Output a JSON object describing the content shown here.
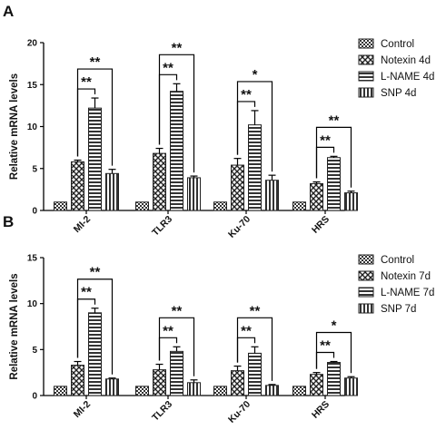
{
  "colors": {
    "bar_stroke": "#222222",
    "axis": "#000000",
    "background": "#ffffff"
  },
  "legend_patterns": [
    "checker-fine",
    "diag-cross",
    "horizontal-stripes",
    "vertical-stripes"
  ],
  "chart_data": [
    {
      "panel": "A",
      "type": "bar",
      "ylabel": "Relative mRNA levels",
      "ylim": [
        0,
        20
      ],
      "yticks": [
        0,
        5,
        10,
        15,
        20
      ],
      "categories": [
        "MI-2",
        "TLR3",
        "Ku-70",
        "HRS"
      ],
      "legend_position": "right",
      "series": [
        {
          "name": "Control",
          "pattern": "checker-fine",
          "values": [
            1,
            1,
            1,
            1
          ],
          "errors": [
            0,
            0,
            0,
            0
          ]
        },
        {
          "name": "Notexin 4d",
          "pattern": "diag-cross",
          "values": [
            5.8,
            6.8,
            5.4,
            3.2
          ],
          "errors": [
            0.2,
            0.6,
            0.8,
            0.2
          ]
        },
        {
          "name": "L-NAME 4d",
          "pattern": "horizontal-stripes",
          "values": [
            12.2,
            14.2,
            10.2,
            6.3
          ],
          "errors": [
            1.2,
            0.9,
            1.7,
            0.15
          ]
        },
        {
          "name": "SNP 4d",
          "pattern": "vertical-stripes",
          "values": [
            4.4,
            3.9,
            3.6,
            2.1
          ],
          "errors": [
            0.5,
            0.2,
            0.6,
            0.2
          ]
        }
      ],
      "significance": [
        {
          "category": "MI-2",
          "levels": [
            {
              "to_series": 2,
              "label": "**"
            },
            {
              "to_series": 3,
              "label": "**"
            }
          ]
        },
        {
          "category": "TLR3",
          "levels": [
            {
              "to_series": 2,
              "label": "**"
            },
            {
              "to_series": 3,
              "label": "**"
            }
          ]
        },
        {
          "category": "Ku-70",
          "levels": [
            {
              "to_series": 2,
              "label": "**"
            },
            {
              "to_series": 3,
              "label": "*"
            }
          ]
        },
        {
          "category": "HRS",
          "levels": [
            {
              "to_series": 2,
              "label": "**"
            },
            {
              "to_series": 3,
              "label": "**"
            }
          ]
        }
      ]
    },
    {
      "panel": "B",
      "type": "bar",
      "ylabel": "Relative mRNA levels",
      "ylim": [
        0,
        15
      ],
      "yticks": [
        0,
        5,
        10,
        15
      ],
      "categories": [
        "MI-2",
        "TLR3",
        "Ku-70",
        "HRS"
      ],
      "legend_position": "right",
      "series": [
        {
          "name": "Control",
          "pattern": "checker-fine",
          "values": [
            1,
            1,
            1,
            1
          ],
          "errors": [
            0,
            0,
            0,
            0
          ]
        },
        {
          "name": "Notexin 7d",
          "pattern": "diag-cross",
          "values": [
            3.3,
            2.8,
            2.7,
            2.3
          ],
          "errors": [
            0.4,
            0.6,
            0.5,
            0.2
          ]
        },
        {
          "name": "L-NAME 7d",
          "pattern": "horizontal-stripes",
          "values": [
            9.0,
            4.8,
            4.6,
            3.6
          ],
          "errors": [
            0.5,
            0.5,
            0.7,
            0.1
          ]
        },
        {
          "name": "SNP 7d",
          "pattern": "vertical-stripes",
          "values": [
            1.8,
            1.4,
            1.1,
            1.9
          ],
          "errors": [
            0.1,
            0.3,
            0.1,
            0.15
          ]
        }
      ],
      "significance": [
        {
          "category": "MI-2",
          "levels": [
            {
              "to_series": 2,
              "label": "**"
            },
            {
              "to_series": 3,
              "label": "**"
            }
          ]
        },
        {
          "category": "TLR3",
          "levels": [
            {
              "to_series": 2,
              "label": "**"
            },
            {
              "to_series": 3,
              "label": "**"
            }
          ]
        },
        {
          "category": "Ku-70",
          "levels": [
            {
              "to_series": 2,
              "label": "**"
            },
            {
              "to_series": 3,
              "label": "**"
            }
          ]
        },
        {
          "category": "HRS",
          "levels": [
            {
              "to_series": 2,
              "label": "**"
            },
            {
              "to_series": 3,
              "label": "*"
            }
          ]
        }
      ]
    }
  ]
}
